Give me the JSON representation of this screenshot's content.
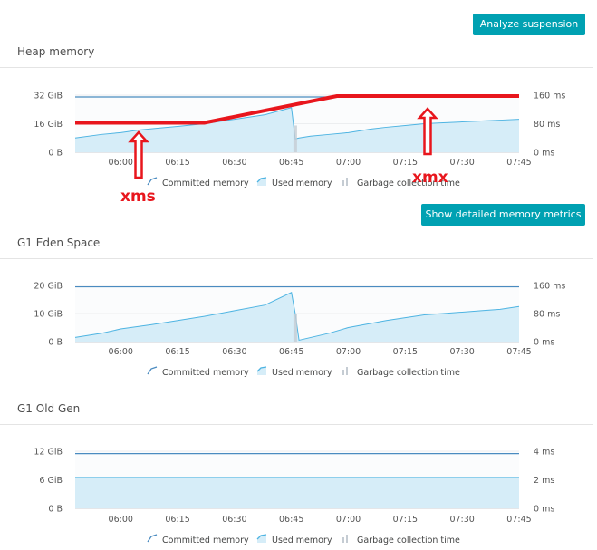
{
  "buttons": {
    "analyze": "Analyze suspension",
    "details": "Show detailed memory metrics"
  },
  "colors": {
    "accent": "#00a1b2",
    "committed": "#4a8bc0",
    "used_line": "#4eb4e2",
    "used_fill": "#d6edf8",
    "gc": "#c5ccd3",
    "annotation": "#e8161d"
  },
  "legend": {
    "committed": "Committed memory",
    "used": "Used memory",
    "gc": "Garbage collection time"
  },
  "chart_data": [
    {
      "type": "area",
      "title": "Heap memory",
      "x": [
        "05:48",
        "05:55",
        "06:00",
        "06:05",
        "06:10",
        "06:15",
        "06:22",
        "06:30",
        "06:38",
        "06:45",
        "06:46",
        "06:47",
        "06:50",
        "06:55",
        "07:00",
        "07:06",
        "07:10",
        "07:15",
        "07:20",
        "07:25",
        "07:30",
        "07:35",
        "07:40",
        "07:45"
      ],
      "xticks": [
        "06:00",
        "06:15",
        "06:30",
        "06:45",
        "07:00",
        "07:15",
        "07:30",
        "07:45"
      ],
      "y_left_ticks": [
        "0 B",
        "16 GiB",
        "32 GiB"
      ],
      "y_right_ticks": [
        "0 ms",
        "80 ms",
        "160 ms"
      ],
      "ylim": [
        0,
        32
      ],
      "y2lim": [
        0,
        160
      ],
      "series": [
        {
          "name": "Committed memory",
          "values": [
            31,
            31,
            31,
            31,
            31,
            31,
            31,
            31,
            31,
            31,
            31,
            31,
            31,
            31,
            31,
            31,
            31,
            31,
            31,
            31,
            31,
            31,
            31,
            31
          ]
        },
        {
          "name": "Used memory",
          "values": [
            8,
            10,
            11,
            12.5,
            13.5,
            14.5,
            16,
            18.5,
            21,
            25,
            7.5,
            8,
            9,
            10,
            11,
            13,
            14,
            15,
            16,
            16.5,
            17,
            17.5,
            18,
            18.5
          ]
        }
      ],
      "gc": [
        {
          "x": "06:46",
          "value": 75
        }
      ],
      "annotations": [
        {
          "text": "xms",
          "line": [
            16.5,
            16.5
          ]
        },
        {
          "text": "xmx",
          "line": [
            31.5,
            31.5
          ]
        }
      ]
    },
    {
      "type": "area",
      "title": "G1 Eden Space",
      "x": [
        "05:48",
        "05:55",
        "06:00",
        "06:08",
        "06:15",
        "06:22",
        "06:30",
        "06:38",
        "06:45",
        "06:46",
        "06:47",
        "06:55",
        "07:00",
        "07:06",
        "07:10",
        "07:15",
        "07:20",
        "07:25",
        "07:30",
        "07:35",
        "07:40",
        "07:45"
      ],
      "xticks": [
        "06:00",
        "06:15",
        "06:30",
        "06:45",
        "07:00",
        "07:15",
        "07:30",
        "07:45"
      ],
      "y_left_ticks": [
        "0 B",
        "10 GiB",
        "20 GiB"
      ],
      "y_right_ticks": [
        "0 ms",
        "80 ms",
        "160 ms"
      ],
      "ylim": [
        0,
        20
      ],
      "y2lim": [
        0,
        160
      ],
      "series": [
        {
          "name": "Committed memory",
          "values": [
            19.5,
            19.5,
            19.5,
            19.5,
            19.5,
            19.5,
            19.5,
            19.5,
            19.5,
            19.5,
            19.5,
            19.5,
            19.5,
            19.5,
            19.5,
            19.5,
            19.5,
            19.5,
            19.5,
            19.5,
            19.5,
            19.5
          ]
        },
        {
          "name": "Used memory",
          "values": [
            1.5,
            3,
            4.5,
            6,
            7.5,
            9,
            11,
            13,
            17.5,
            10,
            0.5,
            3,
            5,
            6.5,
            7.5,
            8.5,
            9.5,
            10,
            10.5,
            11,
            11.5,
            12.5
          ]
        }
      ],
      "gc": [
        {
          "x": "06:46",
          "value": 80
        }
      ]
    },
    {
      "type": "area",
      "title": "G1 Old Gen",
      "x": [
        "05:48",
        "06:00",
        "06:15",
        "06:30",
        "06:45",
        "07:00",
        "07:15",
        "07:30",
        "07:45"
      ],
      "xticks": [
        "06:00",
        "06:15",
        "06:30",
        "06:45",
        "07:00",
        "07:15",
        "07:30",
        "07:45"
      ],
      "y_left_ticks": [
        "0 B",
        "6 GiB",
        "12 GiB"
      ],
      "y_right_ticks": [
        "0 ms",
        "2 ms",
        "4 ms"
      ],
      "ylim": [
        0,
        12
      ],
      "y2lim": [
        0,
        4
      ],
      "series": [
        {
          "name": "Committed memory",
          "values": [
            11.5,
            11.5,
            11.5,
            11.5,
            11.5,
            11.5,
            11.5,
            11.5,
            11.5
          ]
        },
        {
          "name": "Used memory",
          "values": [
            6.5,
            6.5,
            6.5,
            6.5,
            6.5,
            6.5,
            6.5,
            6.5,
            6.5
          ]
        }
      ],
      "gc": []
    }
  ]
}
